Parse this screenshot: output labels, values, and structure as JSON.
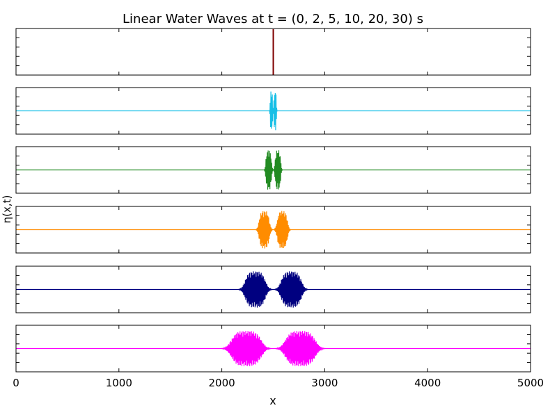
{
  "chart_data": {
    "type": "line",
    "title": "Linear Water Waves at t = (0, 2, 5, 10, 20, 30) s",
    "xlabel": "x",
    "ylabel": "η(x,t)",
    "xlim": [
      0,
      5000
    ],
    "x_ticks": [
      "0",
      "1000",
      "2000",
      "3000",
      "4000",
      "5000"
    ],
    "grid": false,
    "panels": [
      {
        "t": 0,
        "color": "#7f0000",
        "center": 2500,
        "sep": 0,
        "width": 0,
        "amp": 1.0
      },
      {
        "t": 2,
        "color": "#17bfe6",
        "center": 2500,
        "sep": 18,
        "width": 12,
        "amp": 0.9
      },
      {
        "t": 5,
        "color": "#228b22",
        "center": 2500,
        "sep": 45,
        "width": 26,
        "amp": 0.9
      },
      {
        "t": 10,
        "color": "#ff8c00",
        "center": 2500,
        "sep": 88,
        "width": 48,
        "amp": 0.85
      },
      {
        "t": 20,
        "color": "#000080",
        "center": 2500,
        "sep": 175,
        "width": 95,
        "amp": 0.82
      },
      {
        "t": 30,
        "color": "#ff00ff",
        "center": 2500,
        "sep": 262,
        "width": 140,
        "amp": 0.8
      }
    ]
  }
}
